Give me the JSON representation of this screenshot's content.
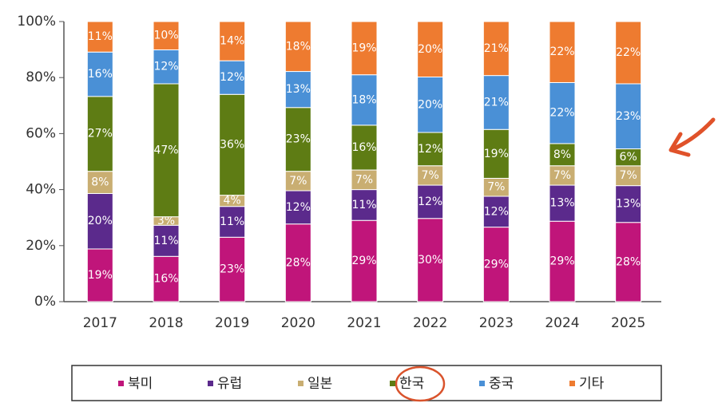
{
  "chart_data": {
    "type": "stacked100",
    "categories": [
      "2017",
      "2018",
      "2019",
      "2020",
      "2021",
      "2022",
      "2023",
      "2024",
      "2025"
    ],
    "series": [
      {
        "name": "북미",
        "color": "#c0157a",
        "values": [
          19,
          16,
          23,
          28,
          29,
          30,
          29,
          29,
          28
        ],
        "value_labels": [
          "19%",
          "16%",
          "23%",
          "28%",
          "29%",
          "30%",
          "29%",
          "29%",
          "28%"
        ]
      },
      {
        "name": "유럽",
        "color": "#5b2a8c",
        "values": [
          20,
          11,
          11,
          12,
          11,
          12,
          12,
          13,
          13
        ],
        "value_labels": [
          "20%",
          "11%",
          "11%",
          "12%",
          "11%",
          "12%",
          "12%",
          "13%",
          "13%"
        ]
      },
      {
        "name": "일본",
        "color": "#c9ae72",
        "values": [
          8,
          3,
          4,
          7,
          7,
          7,
          7,
          7,
          7
        ],
        "value_labels": [
          "8%",
          "3%",
          "4%",
          "7%",
          "7%",
          "7%",
          "7%",
          "7%",
          "7%"
        ]
      },
      {
        "name": "한국",
        "color": "#5e7c14",
        "values": [
          27,
          47,
          36,
          23,
          16,
          12,
          19,
          8,
          6
        ],
        "value_labels": [
          "27%",
          "47%",
          "36%",
          "23%",
          "16%",
          "12%",
          "19%",
          "8%",
          "6%"
        ]
      },
      {
        "name": "중국",
        "color": "#4a90d6",
        "values": [
          16,
          12,
          12,
          13,
          18,
          20,
          21,
          22,
          23
        ],
        "value_labels": [
          "16%",
          "12%",
          "12%",
          "13%",
          "18%",
          "20%",
          "21%",
          "22%",
          "23%"
        ]
      },
      {
        "name": "기타",
        "color": "#ee7b30",
        "values": [
          11,
          10,
          14,
          18,
          19,
          20,
          21,
          22,
          22
        ],
        "value_labels": [
          "11%",
          "10%",
          "14%",
          "18%",
          "19%",
          "20%",
          "21%",
          "22%",
          "22%"
        ]
      }
    ],
    "ylim": [
      0,
      100
    ],
    "yticks": [
      {
        "value": 0,
        "label": "0%"
      },
      {
        "value": 20,
        "label": "20%"
      },
      {
        "value": 40,
        "label": "40%"
      },
      {
        "value": 60,
        "label": "60%"
      },
      {
        "value": 80,
        "label": "80%"
      },
      {
        "value": 100,
        "label": "100%"
      }
    ]
  }
}
